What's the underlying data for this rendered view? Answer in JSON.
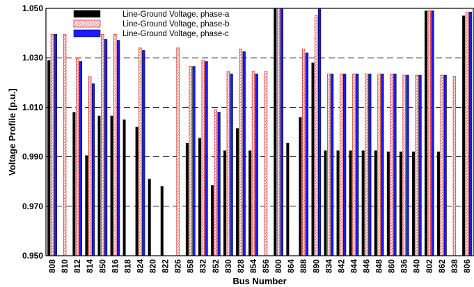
{
  "chart_data": {
    "type": "bar",
    "title": "",
    "xlabel": "Bus Number",
    "ylabel": "Voltage Profile [p.u.]",
    "ylim": [
      0.95,
      1.05
    ],
    "yticks": [
      "0.950",
      "0.970",
      "0.990",
      "1.010",
      "1.030",
      "1.050"
    ],
    "grid": "horizontal dashed",
    "legend_position": "top-left",
    "categories": [
      "808",
      "810",
      "812",
      "814",
      "850",
      "816",
      "818",
      "824",
      "820",
      "822",
      "826",
      "858",
      "832",
      "852",
      "830",
      "828",
      "854",
      "856",
      "800",
      "864",
      "888",
      "890",
      "834",
      "842",
      "844",
      "846",
      "848",
      "860",
      "836",
      "840",
      "802",
      "862",
      "838",
      "806"
    ],
    "series": [
      {
        "name": "Line-Ground Voltage, phase-a",
        "color": "#000000",
        "pattern": "solid",
        "values": [
          1.029,
          null,
          1.008,
          0.9905,
          1.0065,
          1.0065,
          1.005,
          1.002,
          0.981,
          0.978,
          null,
          0.9955,
          0.9975,
          0.9785,
          0.9925,
          1.0015,
          0.9925,
          null,
          1.05,
          0.9955,
          1.006,
          1.028,
          0.9925,
          0.9925,
          0.9925,
          0.9925,
          0.9925,
          0.992,
          0.992,
          0.992,
          1.049,
          0.992,
          null,
          1.047
        ]
      },
      {
        "name": "Line-Ground Voltage, phase-b",
        "color": "#e03030",
        "pattern": "hatched",
        "values": [
          1.0395,
          1.0395,
          1.03,
          1.0225,
          1.0395,
          1.0395,
          null,
          1.034,
          null,
          null,
          1.034,
          1.0265,
          1.029,
          1.009,
          1.0245,
          1.0335,
          1.0245,
          1.0245,
          1.05,
          null,
          1.0335,
          1.047,
          1.0235,
          1.0235,
          1.0235,
          1.0235,
          1.0235,
          1.0235,
          1.023,
          1.023,
          1.049,
          1.023,
          1.0225,
          1.0485
        ]
      },
      {
        "name": "Line-Ground Voltage, phase-c",
        "color": "#1a1aff",
        "pattern": "solid-outlined",
        "values": [
          1.0395,
          null,
          1.0285,
          1.0195,
          1.0375,
          1.037,
          null,
          1.033,
          null,
          null,
          null,
          1.0265,
          1.0285,
          1.008,
          1.0235,
          1.0325,
          1.0235,
          null,
          1.05,
          null,
          1.032,
          1.05,
          1.0235,
          1.0235,
          1.0235,
          1.0235,
          1.0235,
          1.0235,
          1.023,
          1.023,
          1.049,
          1.023,
          null,
          1.0485
        ]
      }
    ]
  }
}
